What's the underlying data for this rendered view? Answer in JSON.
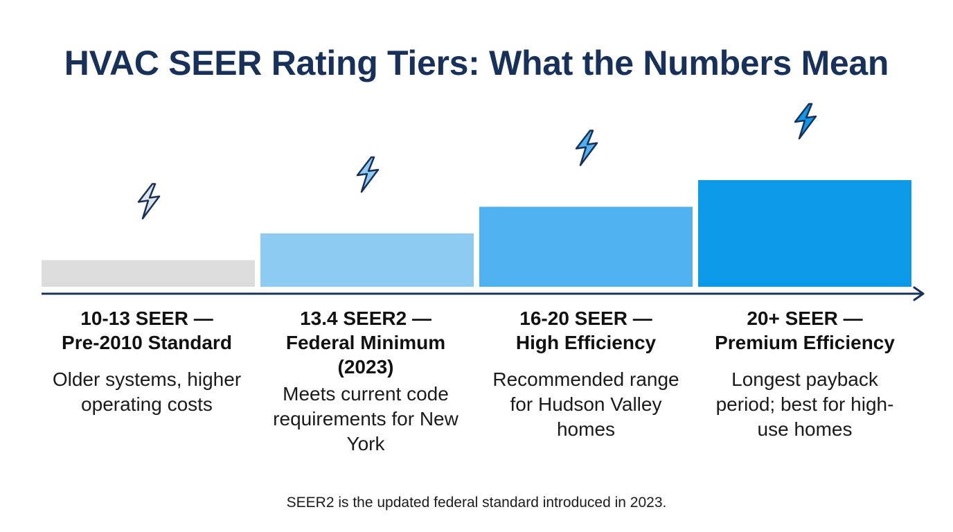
{
  "title": "HVAC SEER Rating Tiers: What the Numbers Mean",
  "tiers": [
    {
      "heading_line1": "10-13 SEER —",
      "heading_line2": "Pre-2010 Standard",
      "heading_line3": "",
      "description": "Older systems, higher operating costs",
      "level": 1,
      "color": "#dcdcdc",
      "icon": "lightning-bolt-icon",
      "icon_color": "#dfe3ea"
    },
    {
      "heading_line1": "13.4 SEER2 —",
      "heading_line2": "Federal Minimum",
      "heading_line3": "(2023)",
      "description": "Meets current code requirements for New York",
      "level": 2,
      "color": "#8ecbf3",
      "icon": "lightning-bolt-icon",
      "icon_color": "#8ecbf3"
    },
    {
      "heading_line1": "16-20 SEER —",
      "heading_line2": "High Efficiency",
      "heading_line3": "",
      "description": "Recommended range for Hudson Valley homes",
      "level": 3,
      "color": "#4fb1ee",
      "icon": "lightning-bolt-icon",
      "icon_color": "#4fb1ee"
    },
    {
      "heading_line1": "20+ SEER —",
      "heading_line2": "Premium Efficiency",
      "heading_line3": "",
      "description": "Longest payback period; best for high-use homes",
      "level": 4,
      "color": "#0c9ae8",
      "icon": "lightning-bolt-icon",
      "icon_color": "#0c9ae8"
    }
  ],
  "axis_color": "#17315a",
  "footnote": "SEER2 is the updated federal standard introduced in 2023."
}
